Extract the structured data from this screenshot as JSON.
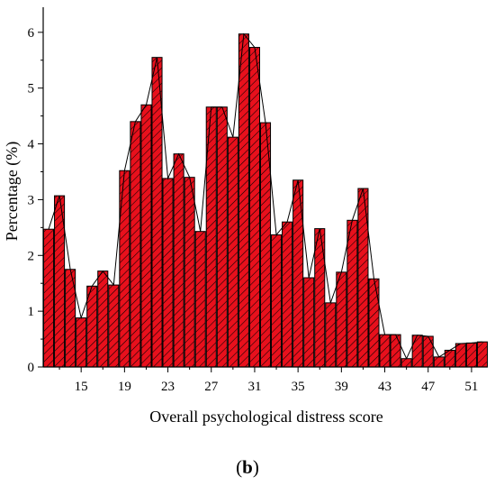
{
  "chart_data": {
    "type": "bar",
    "xlabel": "Overall psychological distress score",
    "ylabel": "Percentage (%)",
    "x": [
      12,
      13,
      14,
      15,
      16,
      17,
      18,
      19,
      20,
      21,
      22,
      23,
      24,
      25,
      26,
      27,
      28,
      29,
      30,
      31,
      32,
      33,
      34,
      35,
      36,
      37,
      38,
      39,
      40,
      41,
      42,
      43,
      44,
      45,
      46,
      47,
      48,
      49,
      50,
      51,
      52
    ],
    "values": [
      2.47,
      3.07,
      1.75,
      0.88,
      1.45,
      1.72,
      1.47,
      3.52,
      4.4,
      4.7,
      5.55,
      3.38,
      3.82,
      3.4,
      2.43,
      4.66,
      4.66,
      4.12,
      5.97,
      5.73,
      4.38,
      2.37,
      2.6,
      3.35,
      1.6,
      2.48,
      1.15,
      1.7,
      2.63,
      3.2,
      1.58,
      0.58,
      0.58,
      0.15,
      0.57,
      0.55,
      0.18,
      0.3,
      0.42,
      0.43,
      0.45
    ],
    "xticks": [
      "15",
      "19",
      "23",
      "27",
      "31",
      "35",
      "39",
      "43",
      "47",
      "51"
    ],
    "yticks": [
      "0",
      "1",
      "2",
      "3",
      "4",
      "5",
      "6"
    ],
    "xlim": [
      11.5,
      52.5
    ],
    "ylim": [
      0,
      6.45
    ],
    "bar_color": "#e8101c",
    "bar_style": "hatched",
    "overlay_line": true
  },
  "caption": {
    "open": "(",
    "label": "b",
    "close": ")"
  }
}
